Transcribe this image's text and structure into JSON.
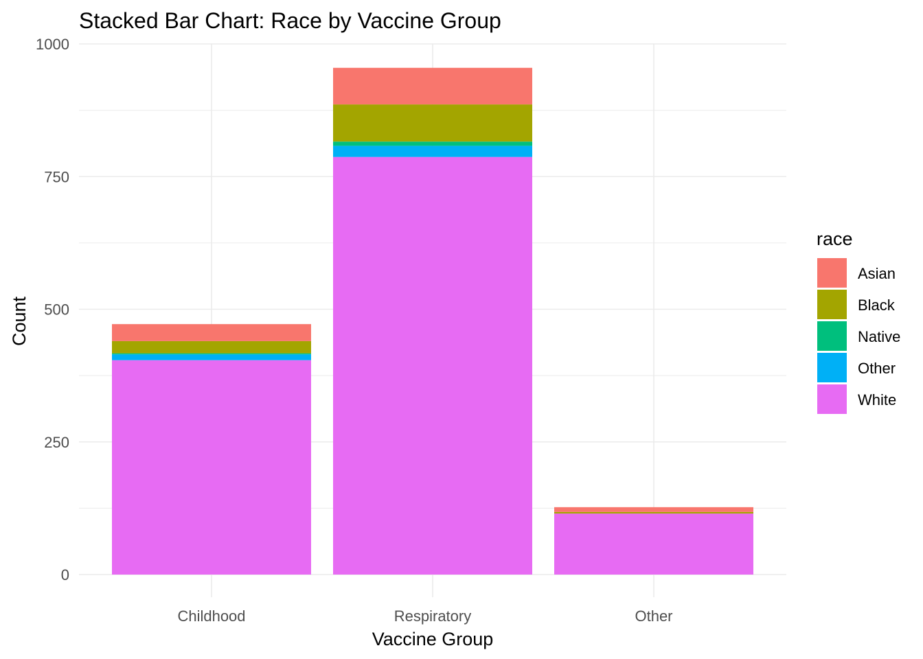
{
  "chart_data": {
    "type": "bar",
    "stacked": true,
    "title": "Stacked Bar Chart: Race by Vaccine Group",
    "xlabel": "Vaccine Group",
    "ylabel": "Count",
    "categories": [
      "Childhood",
      "Respiratory",
      "Other"
    ],
    "ylim": [
      0,
      1000
    ],
    "y_ticks": [
      0,
      250,
      500,
      750,
      1000
    ],
    "grid": true,
    "legend": {
      "title": "race",
      "position": "right"
    },
    "series": [
      {
        "name": "White",
        "color": "#E76BF3",
        "values": [
          404,
          787,
          115
        ]
      },
      {
        "name": "Other",
        "color": "#00B0F6",
        "values": [
          11,
          21,
          0
        ]
      },
      {
        "name": "Native",
        "color": "#00BF7D",
        "values": [
          2,
          8,
          0
        ]
      },
      {
        "name": "Black",
        "color": "#A3A500",
        "values": [
          23,
          70,
          3
        ]
      },
      {
        "name": "Asian",
        "color": "#F8766D",
        "values": [
          32,
          69,
          9
        ]
      }
    ],
    "legend_order": [
      "Asian",
      "Black",
      "Native",
      "Other",
      "White"
    ]
  }
}
